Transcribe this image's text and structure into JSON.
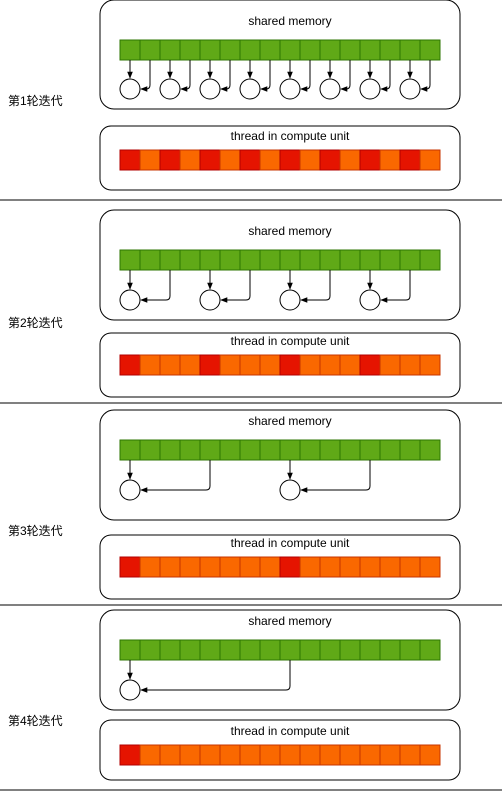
{
  "shared_label": "shared memory",
  "thread_label": "thread in compute unit",
  "colors": {
    "cell_green": "#60a917",
    "cell_green_border": "#2d7600",
    "cell_red": "#e51400",
    "cell_orange": "#fa6800",
    "cell_red_border": "#b20000",
    "cell_orange_border": "#c73500",
    "box_border": "#000000",
    "separator": "#000000"
  },
  "cell_count": 16,
  "iterations": [
    {
      "label": "第1轮迭代",
      "stride": 1,
      "red_every": 2
    },
    {
      "label": "第2轮迭代",
      "stride": 2,
      "red_every": 4
    },
    {
      "label": "第3轮迭代",
      "stride": 4,
      "red_every": 8
    },
    {
      "label": "第4轮迭代",
      "stride": 8,
      "red_every": 16
    }
  ]
}
